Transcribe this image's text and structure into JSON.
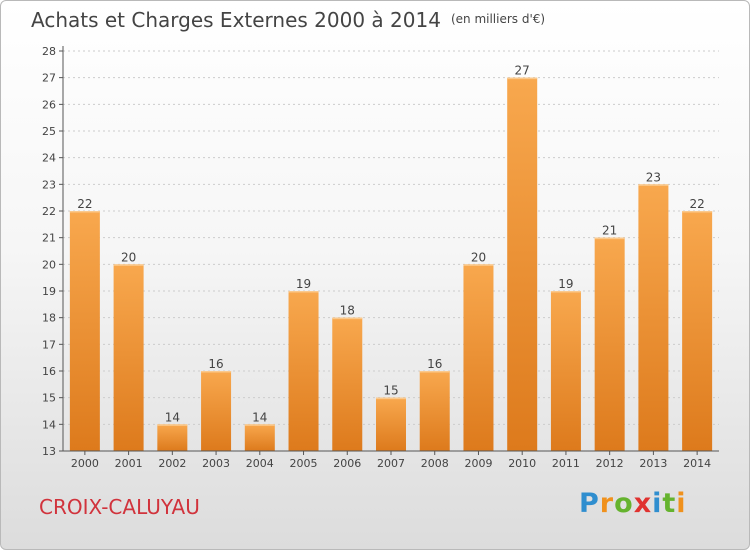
{
  "title": "Achats et Charges Externes 2000 à 2014",
  "subtitle": "(en milliers d'€)",
  "commune": "CROIX-CALUYAU",
  "logo": {
    "letters": [
      "P",
      "r",
      "o",
      "x",
      "i",
      "t",
      "i"
    ],
    "colors": [
      "#2f8ecf",
      "#f0911c",
      "#65b32e",
      "#e0322f",
      "#2f8ecf",
      "#65b32e",
      "#f0911c"
    ]
  },
  "colors": {
    "bar_light": "#f8a84e",
    "bar_dark": "#dd7a1c",
    "axis": "#555555",
    "grid": "#cccccc"
  },
  "chart_data": {
    "type": "bar",
    "title": "Achats et Charges Externes 2000 à 2014",
    "ylabel": "(en milliers d'€)",
    "categories": [
      "2000",
      "2001",
      "2002",
      "2003",
      "2004",
      "2005",
      "2006",
      "2007",
      "2008",
      "2009",
      "2010",
      "2011",
      "2012",
      "2013",
      "2014"
    ],
    "values": [
      22,
      20,
      14,
      16,
      14,
      19,
      18,
      15,
      16,
      20,
      27,
      19,
      21,
      23,
      22
    ],
    "ylim": [
      13,
      28
    ],
    "yticks": [
      13,
      14,
      15,
      16,
      17,
      18,
      19,
      20,
      21,
      22,
      23,
      24,
      25,
      26,
      27,
      28
    ],
    "data_labels": true
  }
}
